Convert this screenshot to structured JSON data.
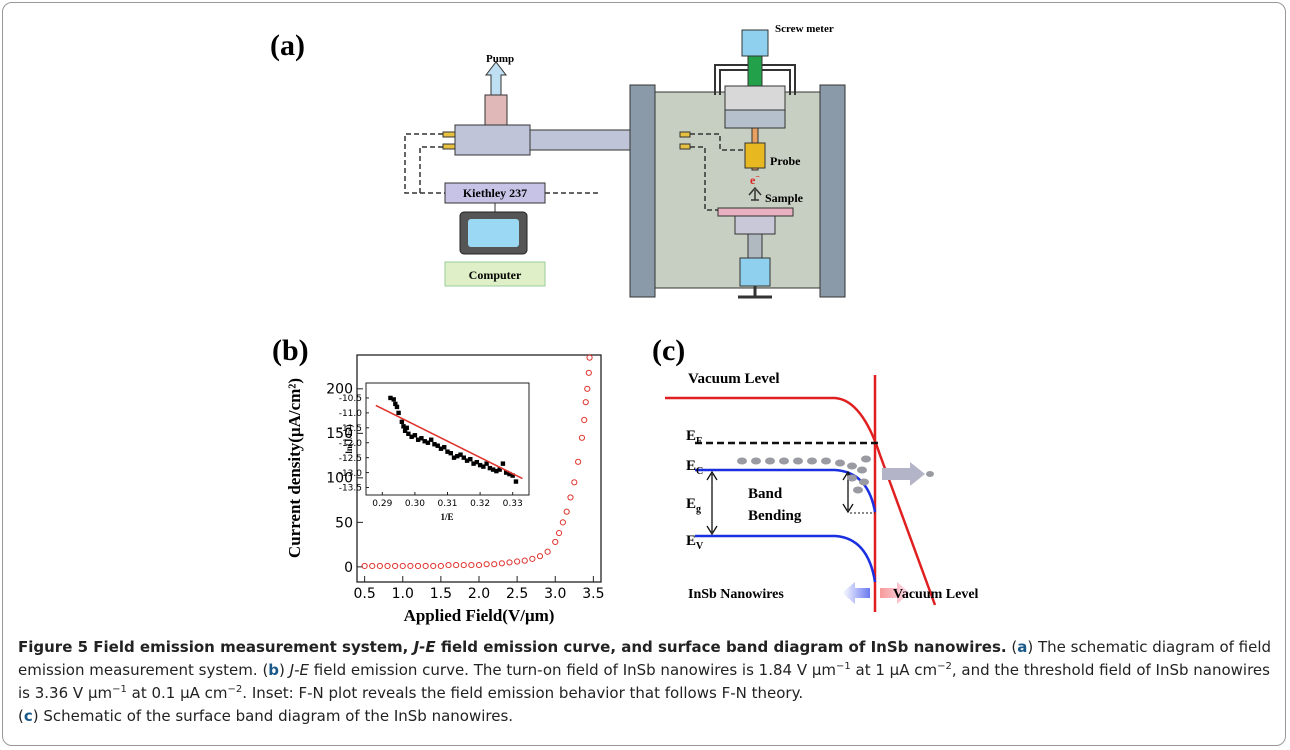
{
  "panel_a": {
    "label": "(a)",
    "pump": "Pump",
    "screw_meter": "Screw meter",
    "probe": "Probe",
    "electron": {
      "main": "e",
      "sup": "−"
    },
    "sample": "Sample",
    "instrument": "Kiethley 237",
    "computer": "Computer"
  },
  "panel_b": {
    "label": "(b)"
  },
  "chart_data": [
    {
      "type": "scatter",
      "x_label": "Applied Field(V/μm)",
      "y_label": "Current density(μA/cm²)",
      "x": [
        0.5,
        0.6,
        0.7,
        0.8,
        0.9,
        1.0,
        1.1,
        1.2,
        1.3,
        1.4,
        1.5,
        1.6,
        1.7,
        1.8,
        1.9,
        2.0,
        2.1,
        2.2,
        2.3,
        2.4,
        2.5,
        2.6,
        2.7,
        2.8,
        2.9,
        3.0,
        3.05,
        3.1,
        3.15,
        3.2,
        3.25,
        3.3,
        3.35,
        3.38,
        3.4,
        3.42,
        3.44,
        3.45
      ],
      "series": [
        {
          "color": "#e0342f",
          "marker": "circle",
          "values": [
            1,
            1,
            1,
            1,
            1,
            1,
            1,
            1,
            1,
            1,
            1,
            2,
            2,
            2,
            2,
            2,
            3,
            3,
            4,
            5,
            6,
            7,
            9,
            12,
            17,
            28,
            38,
            50,
            62,
            78,
            95,
            118,
            145,
            165,
            185,
            200,
            218,
            235
          ]
        }
      ],
      "xlim": [
        0.4,
        3.6
      ],
      "ylim": [
        -17,
        238
      ],
      "xticks": [
        0.5,
        {
          "value": 1,
          "label": "1.0"
        },
        1.5,
        {
          "value": 2,
          "label": "2.0"
        },
        2.5,
        {
          "value": 3,
          "label": "3.0"
        },
        3.5
      ],
      "yticks": [
        0,
        50,
        100,
        150,
        200
      ]
    },
    {
      "type": "scatter",
      "x_label": "1/E",
      "y_label": "ln(J/E²)",
      "series": [
        {
          "color": "#000000",
          "marker": "square",
          "x": [
            0.2925,
            0.2935,
            0.294,
            0.2945,
            0.295,
            0.296,
            0.2965,
            0.297,
            0.2975,
            0.298,
            0.299,
            0.3,
            0.301,
            0.302,
            0.303,
            0.304,
            0.305,
            0.306,
            0.307,
            0.308,
            0.309,
            0.31,
            0.311,
            0.312,
            0.313,
            0.314,
            0.315,
            0.316,
            0.317,
            0.318,
            0.319,
            0.32,
            0.321,
            0.322,
            0.323,
            0.324,
            0.325,
            0.326,
            0.327,
            0.328,
            0.329,
            0.33,
            0.331
          ],
          "values": [
            -10.5,
            -10.55,
            -10.7,
            -10.8,
            -11.0,
            -11.3,
            -11.45,
            -11.6,
            -11.5,
            -11.7,
            -11.8,
            -11.75,
            -11.9,
            -11.85,
            -11.95,
            -12.0,
            -11.9,
            -12.05,
            -12.1,
            -12.2,
            -12.15,
            -12.3,
            -12.35,
            -12.5,
            -12.45,
            -12.4,
            -12.5,
            -12.6,
            -12.55,
            -12.7,
            -12.65,
            -12.75,
            -12.8,
            -12.7,
            -12.85,
            -12.9,
            -12.95,
            -12.9,
            -12.7,
            -13.0,
            -13.05,
            -13.1,
            -13.3
          ]
        },
        {
          "color": "#e0342f",
          "marker": "line",
          "x": [
            0.288,
            0.333
          ],
          "values": [
            -10.75,
            -13.2
          ]
        }
      ],
      "xlim": [
        0.285,
        0.335
      ],
      "ylim": [
        -13.75,
        -10.0
      ],
      "xticks": [
        0.29,
        {
          "value": 0.3,
          "label": "0.30"
        },
        0.31,
        0.32,
        0.33
      ],
      "yticks": [
        -10.5,
        {
          "value": -11,
          "label": "-11.0"
        },
        -11.5,
        {
          "value": -12,
          "label": "-12.0"
        },
        -12.5,
        {
          "value": -13,
          "label": "-13.0"
        },
        -13.5
      ]
    }
  ],
  "panel_c": {
    "label": "(c)",
    "vacuum_top": "Vacuum Level",
    "ef": {
      "main": "E",
      "sub": "F"
    },
    "ec": {
      "main": "E",
      "sub": "C"
    },
    "eg": {
      "main": "E",
      "sub": "g"
    },
    "ev": {
      "main": "E",
      "sub": "V"
    },
    "band": "Band",
    "bending": "Bending",
    "nanowires": "InSb Nanowires",
    "vacuum_bottom": "Vacuum Level"
  },
  "caption": {
    "parts": [
      "Figure 5 Field emission measurement system, ",
      "J-E",
      " field emission curve, and surface band diagram of InSb nanowires.",
      " (",
      "a",
      ") The schematic diagram of field emission measurement system. (",
      "b",
      ") ",
      "J-E",
      " field emission curve. The turn-on field of InSb nanowires is 1.84 V μm",
      "−1",
      " at 1 μA cm",
      "−2",
      ", and the threshold field of InSb nanowires is 3.36 V μm",
      "−1",
      " at 0.1 μA cm",
      "−2",
      ". Inset: F-N plot reveals the field emission behavior that follows F-N theory.",
      "(",
      "c",
      ") Schematic of the surface band diagram of the InSb nanowires."
    ]
  }
}
